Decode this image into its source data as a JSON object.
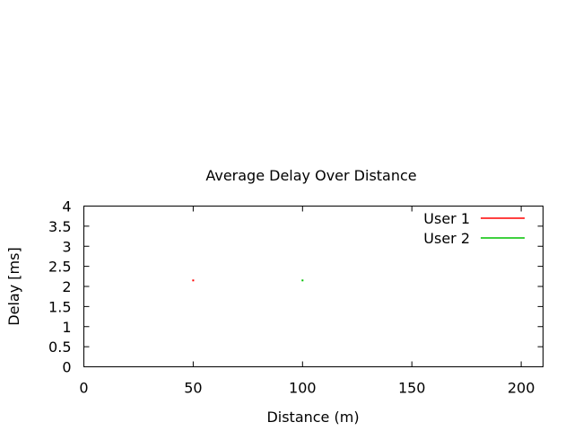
{
  "chart_data": {
    "type": "scatter",
    "title": "Average Delay Over Distance",
    "xlabel": "Distance (m)",
    "ylabel": "Delay [ms]",
    "xlim": [
      0,
      210
    ],
    "ylim": [
      0,
      4
    ],
    "xticks": [
      "0",
      "50",
      "100",
      "150",
      "200"
    ],
    "yticks": [
      "0",
      "0.5",
      "1",
      "1.5",
      "2",
      "2.5",
      "3",
      "3.5",
      "4"
    ],
    "grid": false,
    "legend_position": "top-right",
    "series": [
      {
        "name": "User 1",
        "color": "#ff0000",
        "points": [
          {
            "x": 50,
            "y": 2.15
          }
        ]
      },
      {
        "name": "User 2",
        "color": "#00c000",
        "points": [
          {
            "x": 100,
            "y": 2.15
          }
        ]
      }
    ]
  }
}
